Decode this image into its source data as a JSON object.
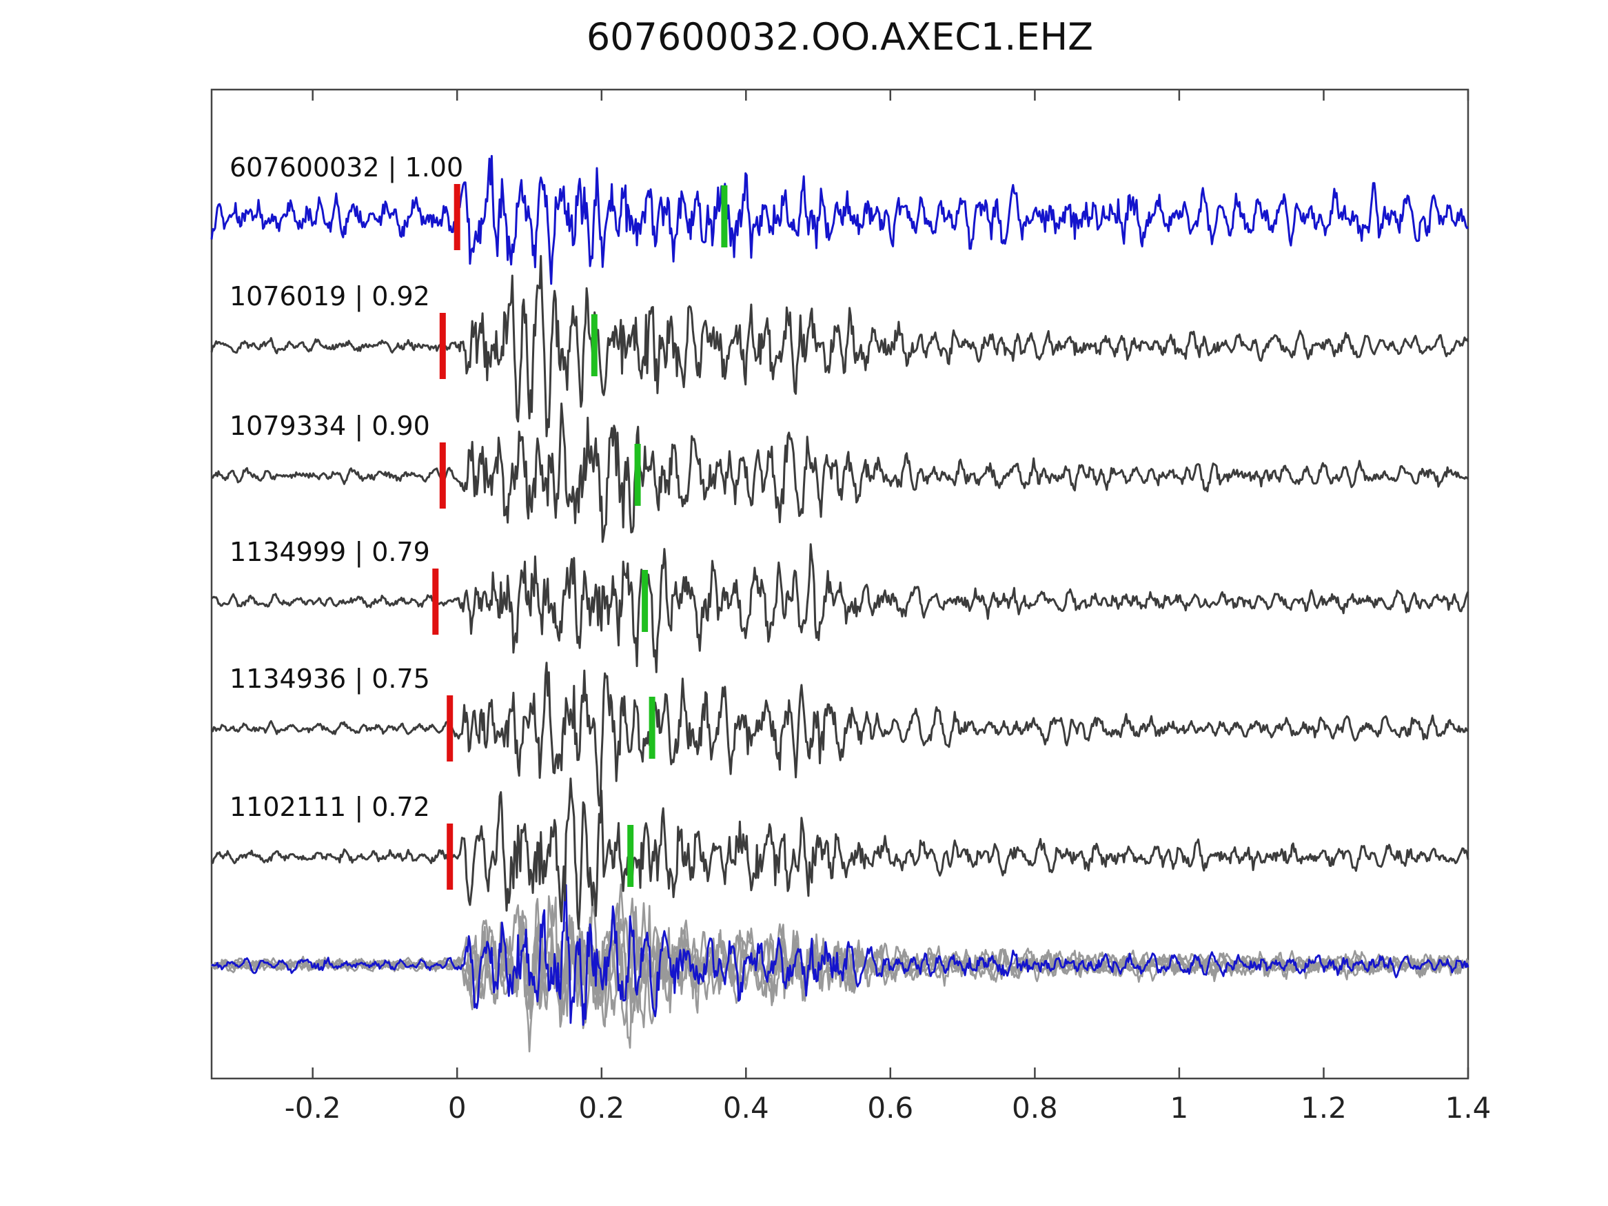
{
  "title": "607600032.OO.AXEC1.EHZ",
  "axis": {
    "xmin": -0.34,
    "xmax": 1.4,
    "ticks": [
      -0.2,
      0,
      0.2,
      0.4,
      0.6,
      0.8,
      1,
      1.2,
      1.4
    ],
    "tick_labels": [
      "-0.2",
      "0",
      "0.2",
      "0.4",
      "0.6",
      "0.8",
      "1",
      "1.2",
      "1.4"
    ]
  },
  "colors": {
    "reference": "#1414cc",
    "match": "#3c3c3c",
    "overlay_gray": "#999999",
    "pick_red": "#e01010",
    "pick_green": "#1fbf1f",
    "axis": "#444444"
  },
  "chart_data": {
    "type": "line",
    "title": "607600032.OO.AXEC1.EHZ",
    "xlabel": "",
    "ylabel": "",
    "x_range": [
      -0.34,
      1.4
    ],
    "x_ticks": [
      -0.2,
      0,
      0.2,
      0.4,
      0.6,
      0.8,
      1,
      1.2,
      1.4
    ],
    "description": "Reference seismogram 607600032 (blue) and five correlated event waveforms (dark gray) offset vertically; red bars mark the pick time near 0 s on each trace, green bars mark the correlation pick; bottom row overlays all aligned traces (gray) with the reference in blue.",
    "series": [
      {
        "id": "607600032",
        "correlation": 1.0,
        "label": "607600032 | 1.00",
        "color_role": "reference",
        "pick_x": 0.0,
        "corr_pick_x": 0.37
      },
      {
        "id": "1076019",
        "correlation": 0.92,
        "label": "1076019 | 0.92",
        "color_role": "match",
        "pick_x": -0.02,
        "corr_pick_x": 0.19
      },
      {
        "id": "1079334",
        "correlation": 0.9,
        "label": "1079334 | 0.90",
        "color_role": "match",
        "pick_x": -0.02,
        "corr_pick_x": 0.25
      },
      {
        "id": "1134999",
        "correlation": 0.79,
        "label": "1134999 | 0.79",
        "color_role": "match",
        "pick_x": -0.03,
        "corr_pick_x": 0.26
      },
      {
        "id": "1134936",
        "correlation": 0.75,
        "label": "1134936 | 0.75",
        "color_role": "match",
        "pick_x": -0.01,
        "corr_pick_x": 0.27
      },
      {
        "id": "1102111",
        "correlation": 0.72,
        "label": "1102111 | 0.72",
        "color_role": "match",
        "pick_x": -0.01,
        "corr_pick_x": 0.24
      }
    ],
    "overlay_row": {
      "content": "all six traces aligned and superimposed",
      "gray_role": "overlay_gray",
      "highlight_role": "reference"
    }
  }
}
